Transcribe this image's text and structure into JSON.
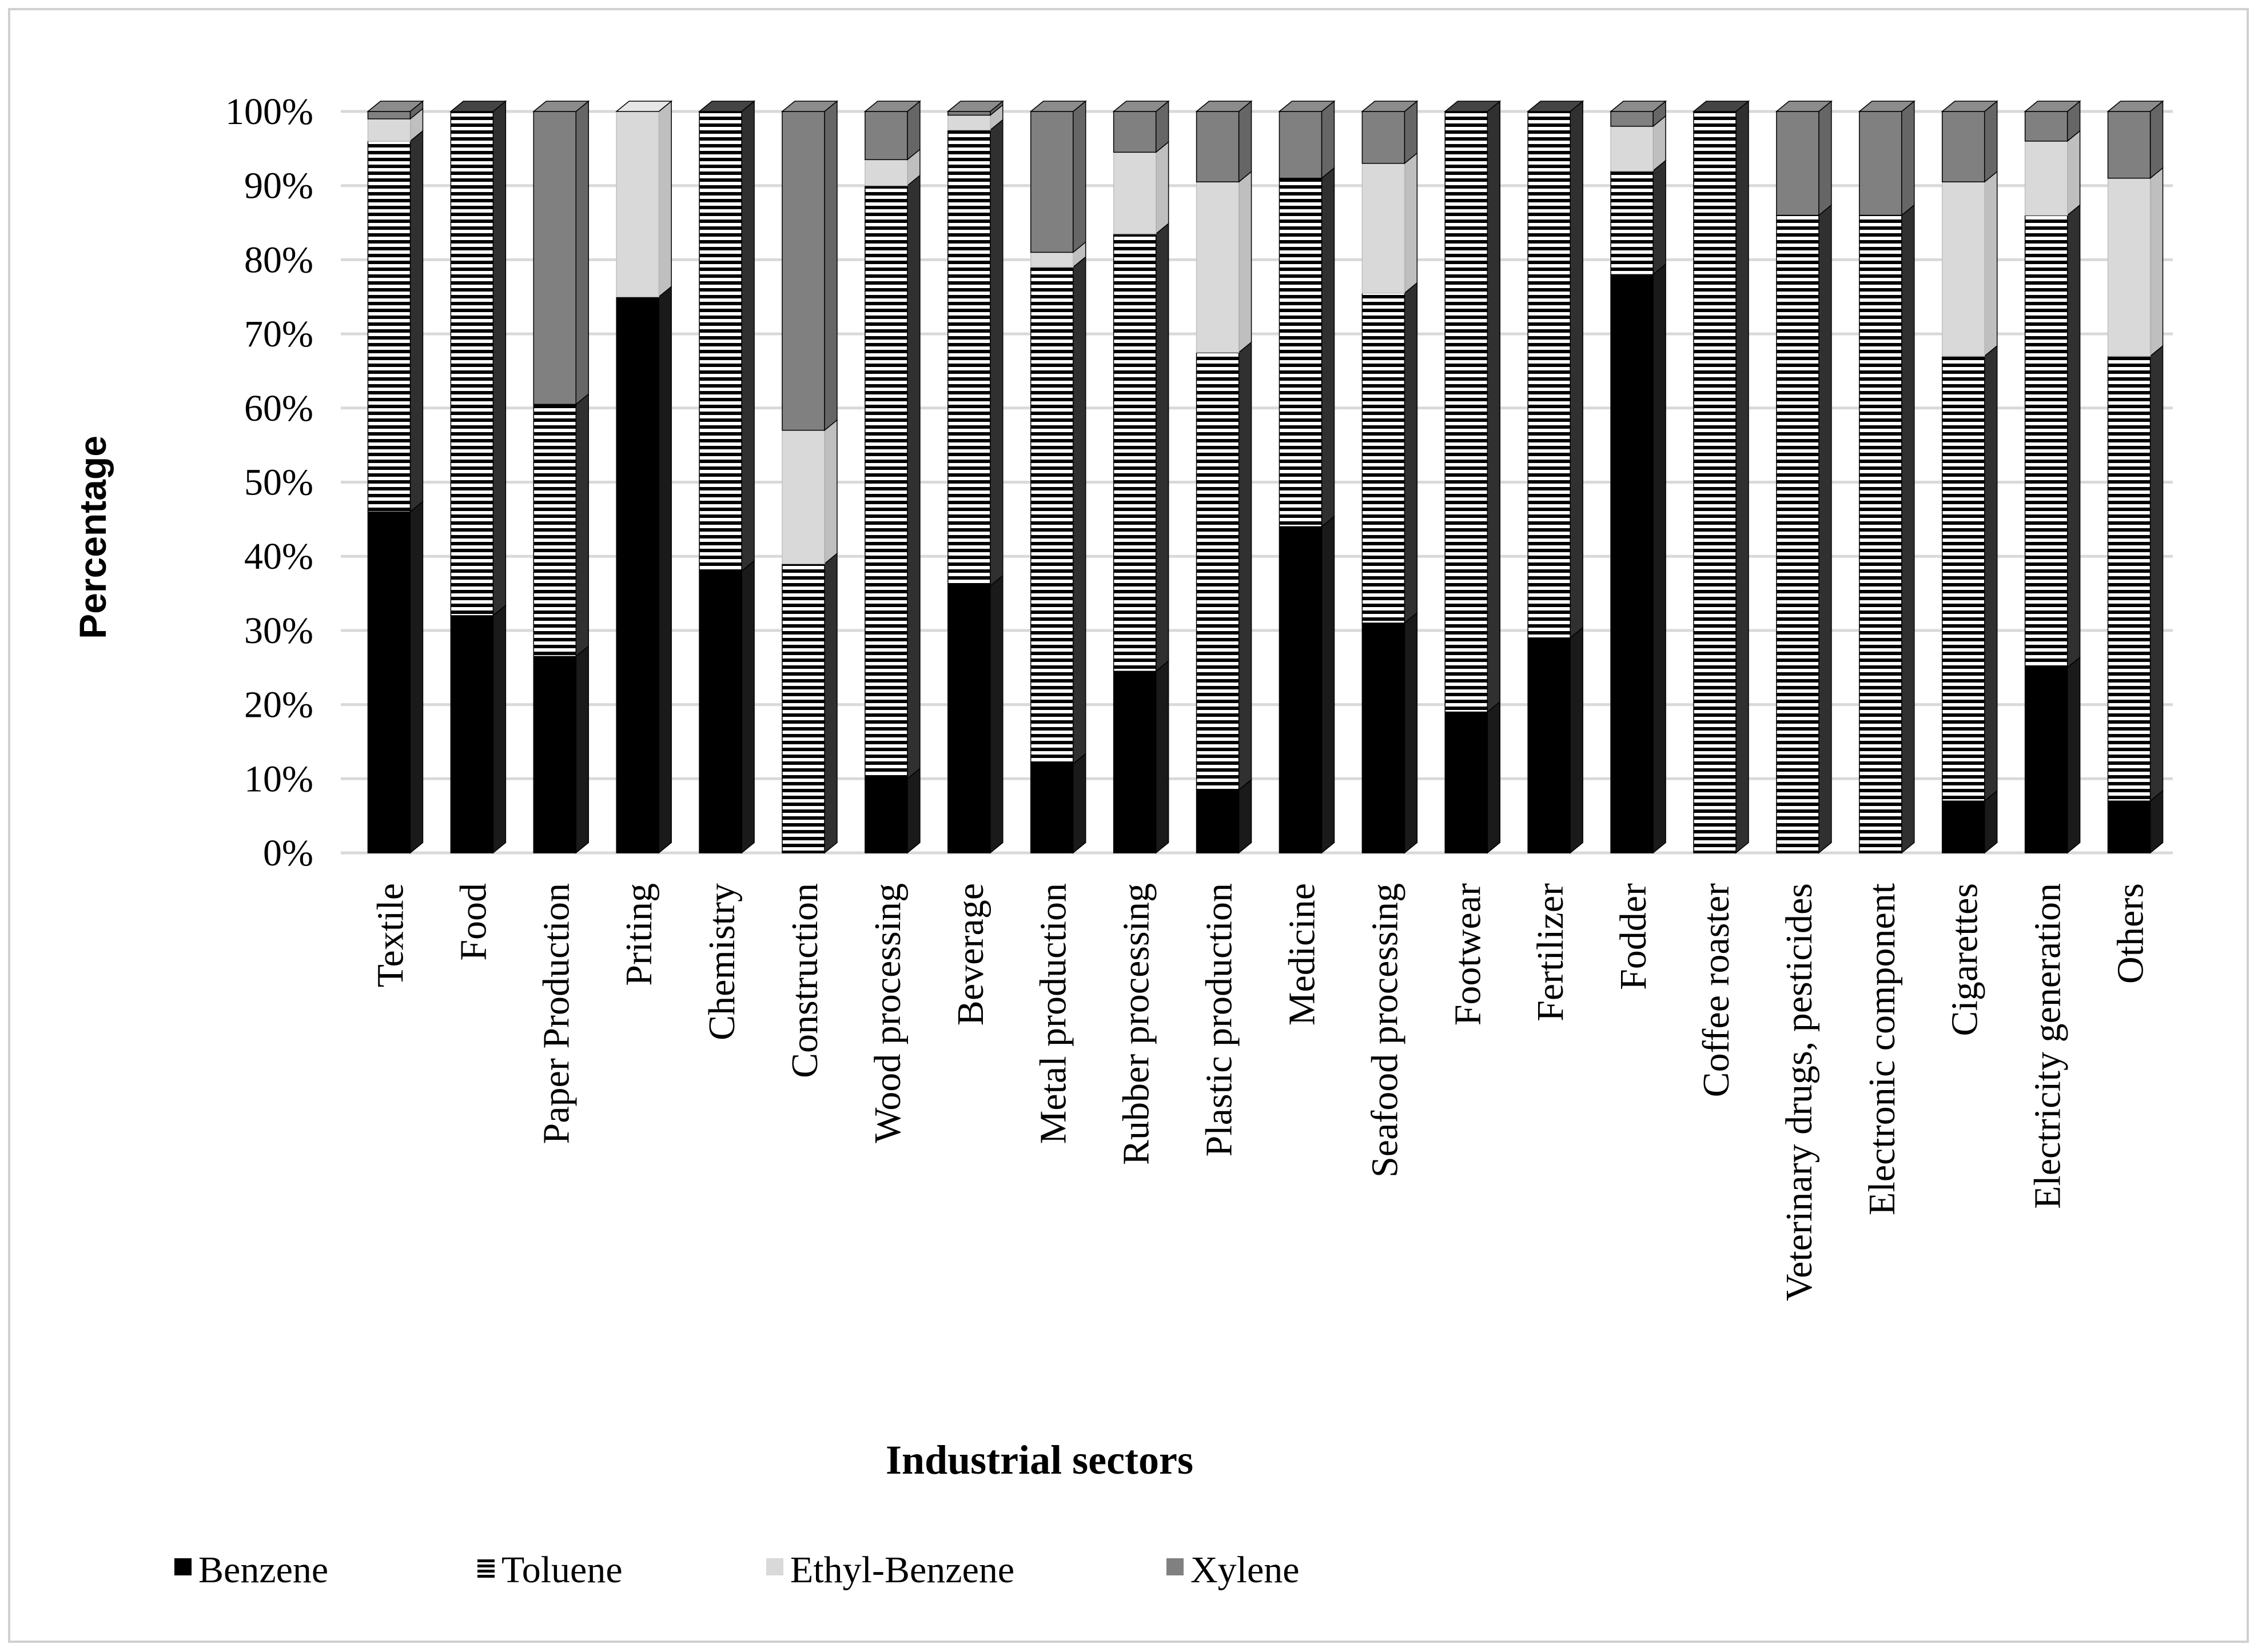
{
  "chart_data": {
    "type": "bar",
    "stacked": true,
    "normalized": true,
    "title": "",
    "xlabel": "Industrial sectors",
    "ylabel": "Percentage",
    "ylim": [
      0,
      100
    ],
    "yticks": [
      "0%",
      "10%",
      "20%",
      "30%",
      "40%",
      "50%",
      "60%",
      "70%",
      "80%",
      "90%",
      "100%"
    ],
    "grid": true,
    "legend_position": "bottom",
    "categories": [
      "Textile",
      "Food",
      "Paper Production",
      "Priting",
      "Chemistry",
      "Construction",
      "Wood processing",
      "Beverage",
      "Metal production",
      "Rubber processing",
      "Plastic production",
      "Medicine",
      "Seafood processing",
      "Footwear",
      "Fertilizer",
      "Fodder",
      "Coffee roaster",
      "Veterinary drugs, pesticides",
      "Electronic component",
      "Cigarettes",
      "Electricity generation",
      "Others"
    ],
    "series": [
      {
        "name": "Benzene",
        "color": "#000000",
        "pattern": "solid",
        "values": [
          46,
          32,
          26.5,
          75,
          38,
          0,
          10,
          36,
          12,
          24.5,
          8.5,
          44,
          31,
          19,
          29,
          78,
          0,
          0,
          0,
          7,
          25,
          7
        ]
      },
      {
        "name": "Toluene",
        "color": "#000000",
        "pattern": "stripes",
        "values": [
          50,
          68,
          34,
          0,
          62,
          39,
          80,
          61.5,
          67,
          59,
          59,
          47,
          44.5,
          81,
          71,
          14,
          100,
          86,
          86,
          60,
          61,
          60
        ]
      },
      {
        "name": "Ethyl-Benzene",
        "color": "#d9d9d9",
        "pattern": "solid",
        "values": [
          3,
          0,
          0,
          25,
          0,
          18,
          3.5,
          2,
          2,
          11,
          23,
          0,
          17.5,
          0,
          0,
          6,
          0,
          0,
          0,
          23.5,
          10,
          24
        ]
      },
      {
        "name": "Xylene",
        "color": "#808080",
        "pattern": "solid",
        "values": [
          1,
          0,
          39.5,
          0,
          0,
          43,
          6.5,
          0.5,
          19,
          5.5,
          9.5,
          9,
          7,
          0,
          0,
          2,
          0,
          14,
          14,
          9.5,
          4,
          9
        ]
      }
    ]
  },
  "colors": {
    "benzene": "#000000",
    "toluene_stripe": "#000000",
    "toluene_bg": "#ffffff",
    "ethylbenzene": "#d9d9d9",
    "xylene": "#808080",
    "gridline": "#d9d9d9",
    "frame": "#d0d0d0"
  }
}
